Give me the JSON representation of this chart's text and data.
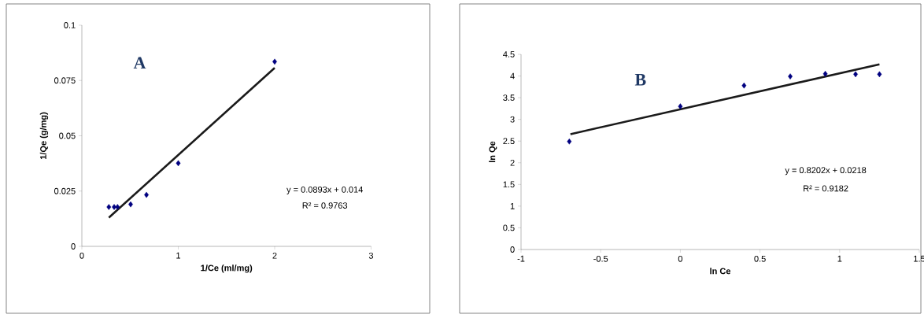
{
  "chart_data": [
    {
      "type": "scatter",
      "title": "A",
      "xlabel": "1/Ce (ml/mg)",
      "ylabel": "1/Qe (g/mg)",
      "xlim": [
        0,
        3
      ],
      "xticks": [
        0,
        1,
        2,
        3
      ],
      "ylim": [
        0,
        0.1
      ],
      "yticks": [
        0,
        0.025,
        0.05,
        0.075,
        0.1
      ],
      "grid": false,
      "annotations": [
        "y = 0.0893x + 0.014",
        "R² = 0.9763"
      ],
      "series": [
        {
          "type": "scatter",
          "color": "#000080",
          "marker": "diamond",
          "x": [
            0.28,
            0.335,
            0.37,
            0.506,
            0.67,
            1.0,
            2.0
          ],
          "values": [
            0.0178,
            0.0178,
            0.0178,
            0.019,
            0.0233,
            0.0376,
            0.0835
          ]
        },
        {
          "type": "line",
          "color": "#1a1a1a",
          "marker": "none",
          "x": [
            0.28,
            2.0
          ],
          "values": [
            0.013,
            0.0807
          ]
        }
      ]
    },
    {
      "type": "scatter",
      "title": "B",
      "xlabel": "ln Ce",
      "ylabel": "ln Qe",
      "xlim": [
        -1,
        1.5
      ],
      "xticks": [
        -1,
        -0.5,
        0,
        0.5,
        1,
        1.5
      ],
      "ylim": [
        0,
        4.5
      ],
      "yticks": [
        0,
        0.5,
        1,
        1.5,
        2,
        2.5,
        3,
        3.5,
        4,
        4.5
      ],
      "grid": false,
      "annotations": [
        "y = 0.8202x + 0.0218",
        "R² = 0.9182"
      ],
      "series": [
        {
          "type": "scatter",
          "color": "#000080",
          "marker": "diamond",
          "x": [
            -0.697,
            0.0,
            0.4,
            0.69,
            0.91,
            1.1,
            1.25
          ],
          "values": [
            2.49,
            3.3,
            3.78,
            3.99,
            4.05,
            4.04,
            4.04
          ]
        },
        {
          "type": "line",
          "color": "#1a1a1a",
          "marker": "none",
          "x": [
            -0.69,
            1.25
          ],
          "values": [
            2.66,
            4.27
          ]
        }
      ]
    }
  ]
}
